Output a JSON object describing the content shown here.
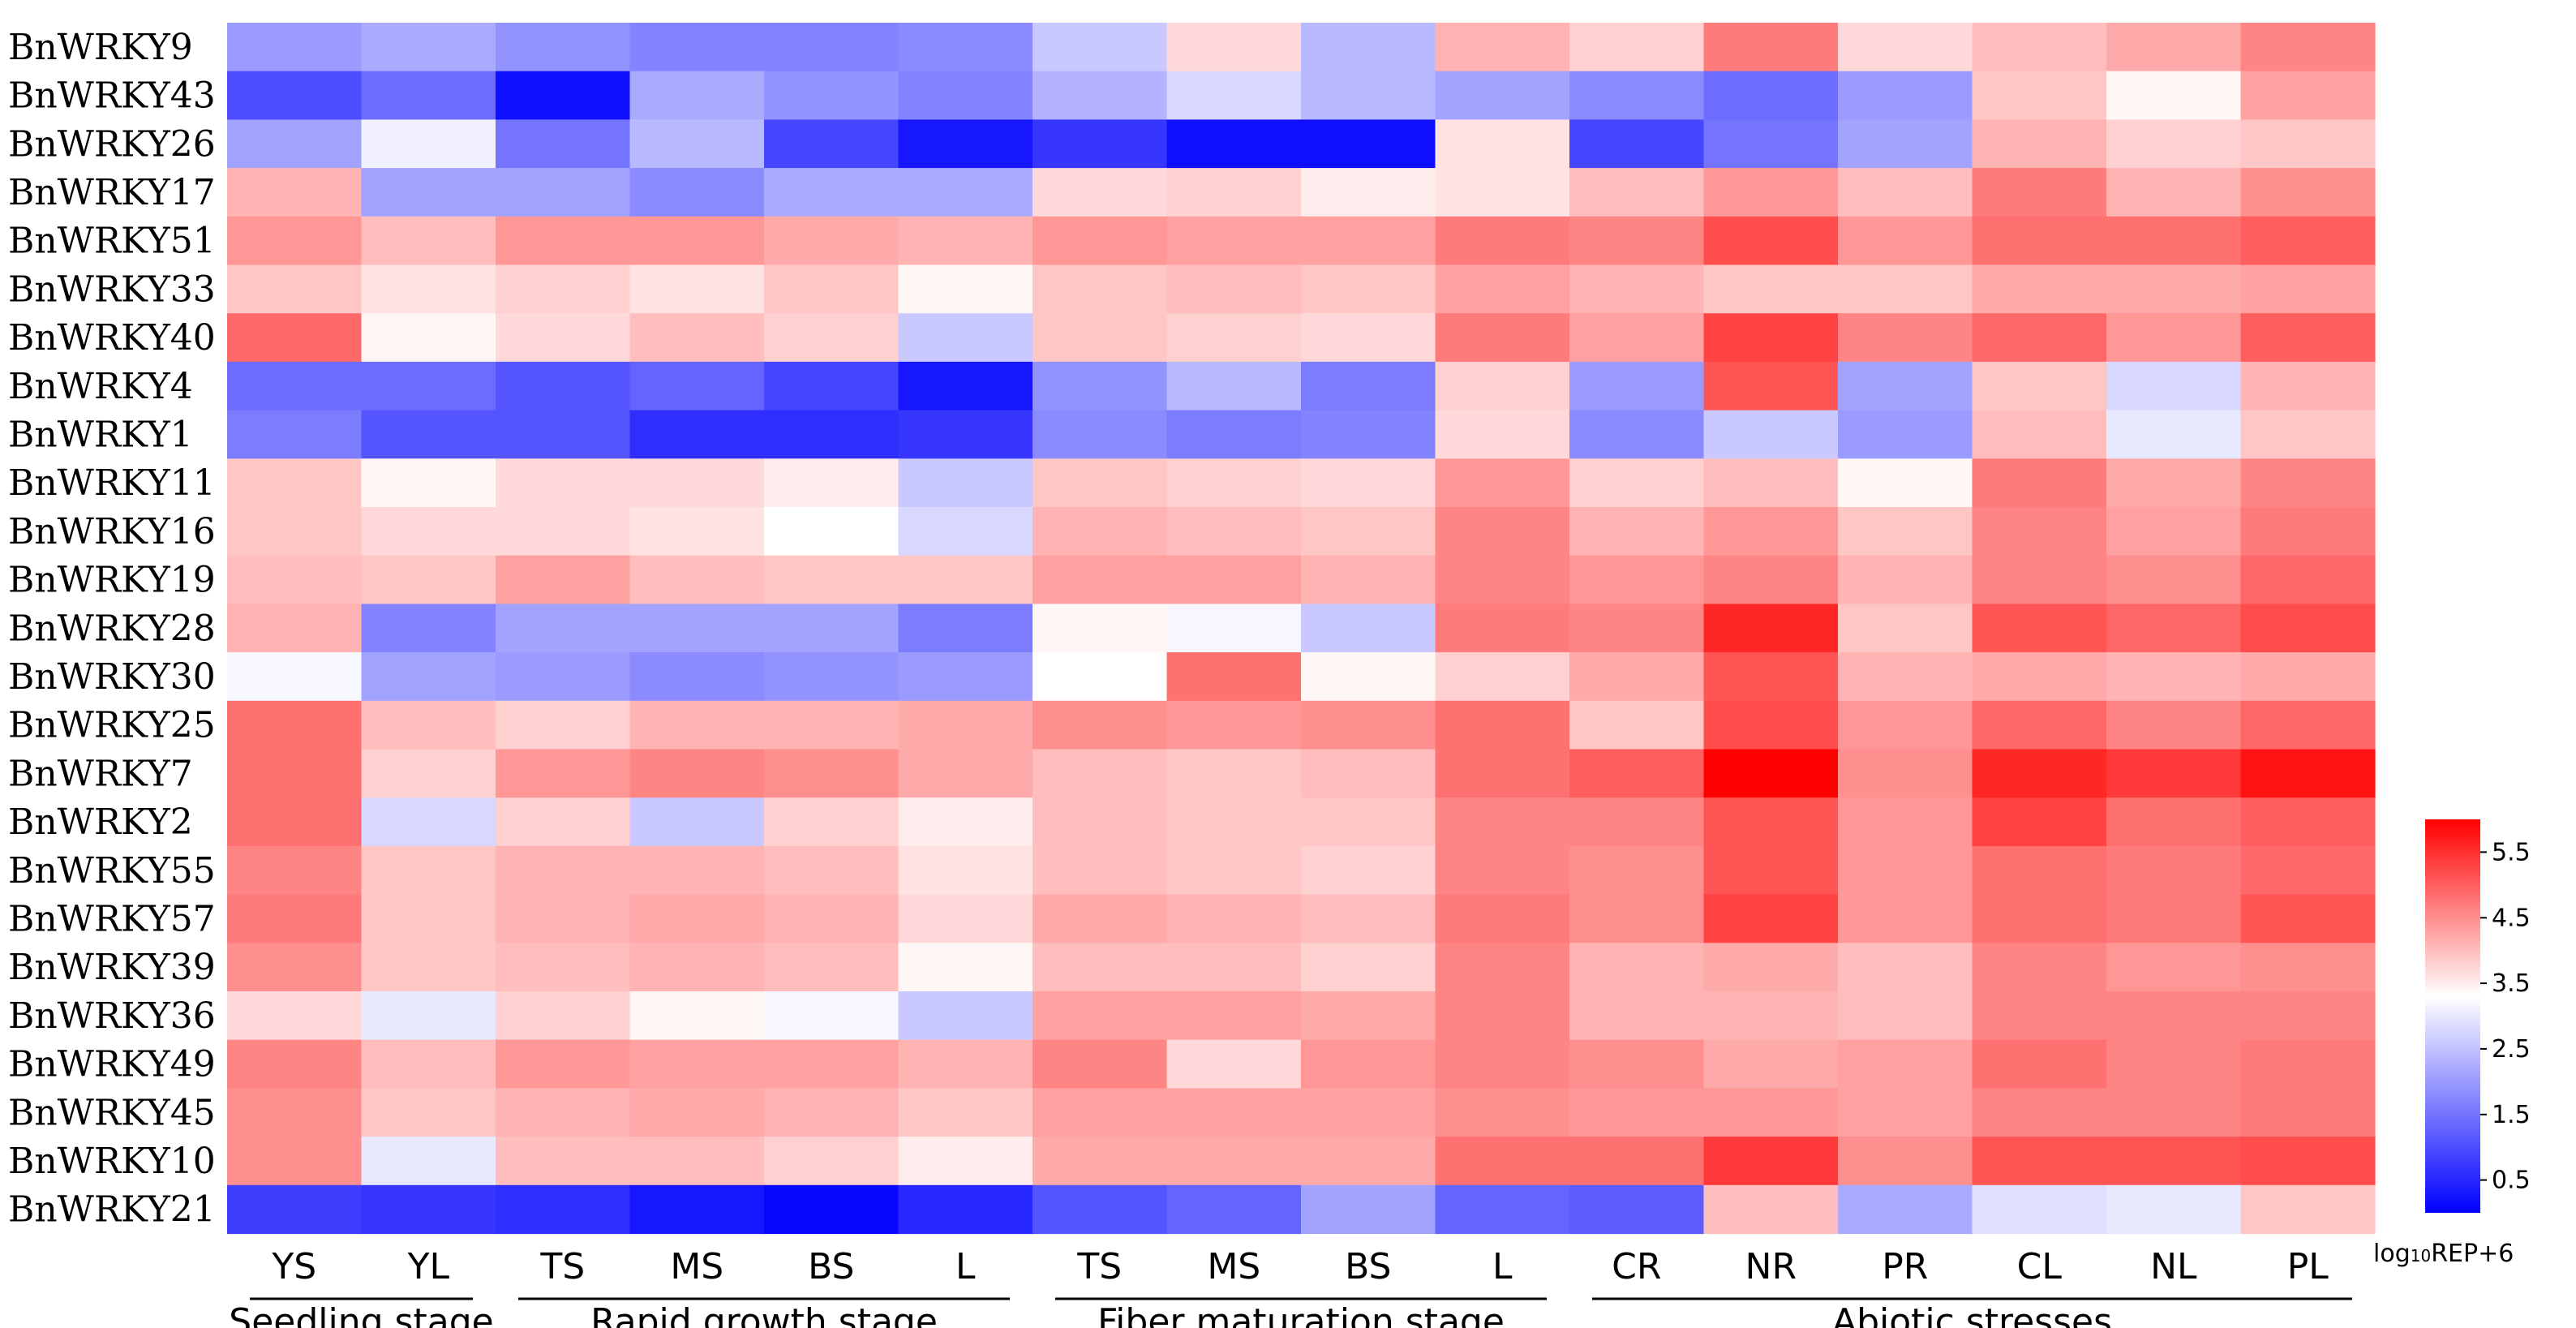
{
  "chart_data": {
    "type": "heatmap",
    "title": "",
    "rows": [
      "BnWRKY9",
      "BnWRKY43",
      "BnWRKY26",
      "BnWRKY17",
      "BnWRKY51",
      "BnWRKY33",
      "BnWRKY40",
      "BnWRKY4",
      "BnWRKY1",
      "BnWRKY11",
      "BnWRKY16",
      "BnWRKY19",
      "BnWRKY28",
      "BnWRKY30",
      "BnWRKY25",
      "BnWRKY7",
      "BnWRKY2",
      "BnWRKY55",
      "BnWRKY57",
      "BnWRKY39",
      "BnWRKY36",
      "BnWRKY49",
      "BnWRKY45",
      "BnWRKY10",
      "BnWRKY21"
    ],
    "columns": [
      "YS",
      "YL",
      "TS",
      "MS",
      "BS",
      "L",
      "TS",
      "MS",
      "BS",
      "L",
      "CR",
      "NR",
      "PR",
      "CL",
      "NL",
      "PL"
    ],
    "groups": [
      {
        "label": "Seedling stage",
        "start": 0,
        "end": 1
      },
      {
        "label": "Rapid growth stage",
        "start": 2,
        "end": 5
      },
      {
        "label": "Fiber maturation stage",
        "start": 6,
        "end": 9
      },
      {
        "label": "Abiotic stresses",
        "start": 10,
        "end": 15
      }
    ],
    "values": [
      [
        2.0,
        2.2,
        1.9,
        1.7,
        1.7,
        1.8,
        2.6,
        3.7,
        2.4,
        4.1,
        3.8,
        4.7,
        3.7,
        4.0,
        4.2,
        4.6
      ],
      [
        1.0,
        1.4,
        0.2,
        2.2,
        1.9,
        1.7,
        2.3,
        2.8,
        2.4,
        2.1,
        1.8,
        1.4,
        2.0,
        3.9,
        3.4,
        4.3
      ],
      [
        2.1,
        3.1,
        1.5,
        2.4,
        0.9,
        0.3,
        0.7,
        0.2,
        0.2,
        3.6,
        0.9,
        1.5,
        2.1,
        4.1,
        3.8,
        3.9
      ],
      [
        4.1,
        2.1,
        2.1,
        1.8,
        2.2,
        2.2,
        3.7,
        3.8,
        3.5,
        3.6,
        4.0,
        4.4,
        4.0,
        4.7,
        4.1,
        4.5
      ],
      [
        4.4,
        4.0,
        4.4,
        4.4,
        4.2,
        4.1,
        4.4,
        4.3,
        4.3,
        4.7,
        4.6,
        5.2,
        4.4,
        4.8,
        4.8,
        5.0
      ],
      [
        3.9,
        3.6,
        3.8,
        3.6,
        3.9,
        3.4,
        3.9,
        4.0,
        3.9,
        4.3,
        4.1,
        3.9,
        3.9,
        4.2,
        4.2,
        4.3
      ],
      [
        4.9,
        3.4,
        3.7,
        4.0,
        3.8,
        2.6,
        3.9,
        3.8,
        3.7,
        4.7,
        4.3,
        5.3,
        4.6,
        4.9,
        4.4,
        5.0
      ],
      [
        1.4,
        1.4,
        1.1,
        1.3,
        0.9,
        0.3,
        1.9,
        2.4,
        1.6,
        3.8,
        2.0,
        5.1,
        2.1,
        3.9,
        2.8,
        4.1
      ],
      [
        1.6,
        1.1,
        1.1,
        0.6,
        0.6,
        0.7,
        1.8,
        1.6,
        1.7,
        3.7,
        1.8,
        2.6,
        2.0,
        4.0,
        3.0,
        3.9
      ],
      [
        3.9,
        3.4,
        3.7,
        3.7,
        3.5,
        2.6,
        3.9,
        3.8,
        3.7,
        4.4,
        3.8,
        4.0,
        3.4,
        4.7,
        4.2,
        4.6
      ],
      [
        3.9,
        3.7,
        3.7,
        3.6,
        3.3,
        2.8,
        4.1,
        4.0,
        3.9,
        4.6,
        4.1,
        4.4,
        3.9,
        4.6,
        4.3,
        4.7
      ],
      [
        4.0,
        3.9,
        4.3,
        4.0,
        3.9,
        3.9,
        4.3,
        4.3,
        4.1,
        4.6,
        4.4,
        4.6,
        4.1,
        4.6,
        4.5,
        4.9
      ],
      [
        4.1,
        1.7,
        2.1,
        2.1,
        2.1,
        1.6,
        3.4,
        3.2,
        2.6,
        4.7,
        4.6,
        5.6,
        3.9,
        5.1,
        4.9,
        5.2
      ],
      [
        3.2,
        2.1,
        2.0,
        1.8,
        1.9,
        2.0,
        3.3,
        4.8,
        3.4,
        3.8,
        4.2,
        5.1,
        4.1,
        4.2,
        4.1,
        4.2
      ],
      [
        4.8,
        4.0,
        3.8,
        4.1,
        4.1,
        4.2,
        4.5,
        4.4,
        4.5,
        4.8,
        3.9,
        5.2,
        4.4,
        4.9,
        4.6,
        4.9
      ],
      [
        4.8,
        3.8,
        4.4,
        4.6,
        4.5,
        4.2,
        4.0,
        3.9,
        4.0,
        4.8,
        5.0,
        6.0,
        4.5,
        5.6,
        5.4,
        5.8
      ],
      [
        4.8,
        2.8,
        3.8,
        2.6,
        3.8,
        3.5,
        4.0,
        3.9,
        3.9,
        4.6,
        4.6,
        5.1,
        4.4,
        5.3,
        4.8,
        5.0
      ],
      [
        4.6,
        3.9,
        4.1,
        4.1,
        4.0,
        3.6,
        4.0,
        3.9,
        3.8,
        4.6,
        4.5,
        5.1,
        4.4,
        4.8,
        4.7,
        4.9
      ],
      [
        4.7,
        3.9,
        4.1,
        4.2,
        4.1,
        3.7,
        4.2,
        4.1,
        4.0,
        4.7,
        4.5,
        5.3,
        4.4,
        4.8,
        4.7,
        5.1
      ],
      [
        4.5,
        3.9,
        4.0,
        4.1,
        4.0,
        3.4,
        4.0,
        4.0,
        3.8,
        4.6,
        4.1,
        4.2,
        4.0,
        4.6,
        4.4,
        4.5
      ],
      [
        3.7,
        3.0,
        3.8,
        3.4,
        3.2,
        2.6,
        4.3,
        4.3,
        4.2,
        4.6,
        4.1,
        4.1,
        4.0,
        4.6,
        4.6,
        4.6
      ],
      [
        4.6,
        4.0,
        4.4,
        4.3,
        4.3,
        4.1,
        4.6,
        3.7,
        4.4,
        4.6,
        4.5,
        4.2,
        4.3,
        4.8,
        4.6,
        4.7
      ],
      [
        4.5,
        3.9,
        4.1,
        4.2,
        4.1,
        3.9,
        4.3,
        4.3,
        4.3,
        4.5,
        4.4,
        4.4,
        4.3,
        4.6,
        4.6,
        4.7
      ],
      [
        4.5,
        3.0,
        4.0,
        4.0,
        3.8,
        3.5,
        4.2,
        4.2,
        4.2,
        4.8,
        4.8,
        5.4,
        4.5,
        5.1,
        5.1,
        5.2
      ],
      [
        0.8,
        0.7,
        0.6,
        0.3,
        0.1,
        0.5,
        1.1,
        1.3,
        2.1,
        1.3,
        1.2,
        4.0,
        2.2,
        2.9,
        3.0,
        3.9
      ]
    ],
    "colorscale": {
      "title": "log₁₀REP+6",
      "title_prefix": "log",
      "title_subscript": "10",
      "title_suffix": "REP+6",
      "ticks": [
        "5.5",
        "4.5",
        "3.5",
        "2.5",
        "1.5",
        "0.5"
      ],
      "range": [
        0,
        6
      ],
      "colors": {
        "low": "#0000ff",
        "mid": "#ffffff",
        "high": "#ff0000"
      },
      "mid_value": 3.3
    }
  }
}
